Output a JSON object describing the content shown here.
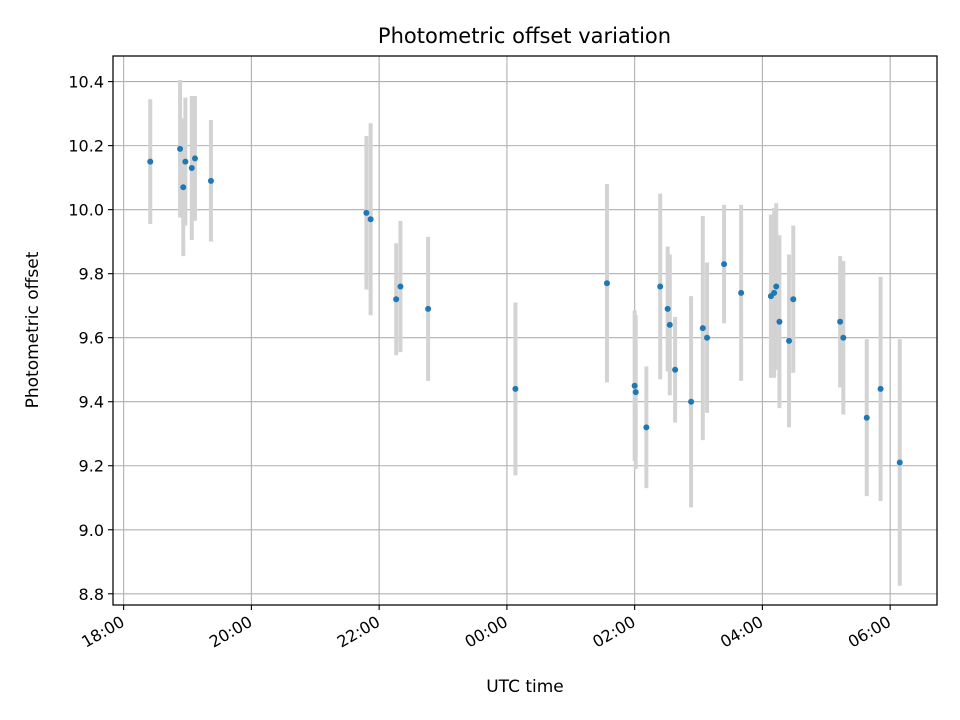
{
  "chart_data": {
    "type": "scatter",
    "title": "Photometric offset variation",
    "xlabel": "UTC time",
    "ylabel": "Photometric offset",
    "x_unit": "UTC clock time (consecutive night)",
    "x_ticks": [
      "18:00",
      "20:00",
      "22:00",
      "00:00",
      "02:00",
      "04:00",
      "06:00"
    ],
    "xlim": [
      "17:50",
      "06:44"
    ],
    "ylim": [
      8.765,
      10.48
    ],
    "y_ticks": [
      "8.8",
      "9.0",
      "9.2",
      "9.4",
      "9.6",
      "9.8",
      "10.0",
      "10.2",
      "10.4"
    ],
    "grid": true,
    "colors": {
      "point": "#1f77b4",
      "errorbar": "#d3d3d3",
      "grid": "#b0b0b0"
    },
    "points": [
      {
        "t": "18:25",
        "y": 10.15,
        "err": 0.195
      },
      {
        "t": "18:53",
        "y": 10.19,
        "err": 0.215
      },
      {
        "t": "18:56",
        "y": 10.07,
        "err": 0.215
      },
      {
        "t": "18:58",
        "y": 10.15,
        "err": 0.2
      },
      {
        "t": "19:04",
        "y": 10.13,
        "err": 0.225
      },
      {
        "t": "19:07",
        "y": 10.16,
        "err": 0.195
      },
      {
        "t": "19:22",
        "y": 10.09,
        "err": 0.19
      },
      {
        "t": "21:48",
        "y": 9.99,
        "err": 0.24
      },
      {
        "t": "21:52",
        "y": 9.97,
        "err": 0.3
      },
      {
        "t": "22:16",
        "y": 9.72,
        "err": 0.175
      },
      {
        "t": "22:20",
        "y": 9.76,
        "err": 0.205
      },
      {
        "t": "22:46",
        "y": 9.69,
        "err": 0.225
      },
      {
        "t": "00:08",
        "y": 9.44,
        "err": 0.27
      },
      {
        "t": "01:34",
        "y": 9.77,
        "err": 0.31
      },
      {
        "t": "02:00",
        "y": 9.45,
        "err": 0.235
      },
      {
        "t": "02:01",
        "y": 9.43,
        "err": 0.24
      },
      {
        "t": "02:11",
        "y": 9.32,
        "err": 0.19
      },
      {
        "t": "02:24",
        "y": 9.76,
        "err": 0.29
      },
      {
        "t": "02:31",
        "y": 9.69,
        "err": 0.195
      },
      {
        "t": "02:33",
        "y": 9.64,
        "err": 0.22
      },
      {
        "t": "02:38",
        "y": 9.5,
        "err": 0.165
      },
      {
        "t": "02:53",
        "y": 9.4,
        "err": 0.33
      },
      {
        "t": "03:04",
        "y": 9.63,
        "err": 0.35
      },
      {
        "t": "03:08",
        "y": 9.6,
        "err": 0.235
      },
      {
        "t": "03:24",
        "y": 9.83,
        "err": 0.185
      },
      {
        "t": "03:40",
        "y": 9.74,
        "err": 0.275
      },
      {
        "t": "04:08",
        "y": 9.73,
        "err": 0.255
      },
      {
        "t": "04:11",
        "y": 9.74,
        "err": 0.265
      },
      {
        "t": "04:13",
        "y": 9.76,
        "err": 0.26
      },
      {
        "t": "04:16",
        "y": 9.65,
        "err": 0.27
      },
      {
        "t": "04:25",
        "y": 9.59,
        "err": 0.27
      },
      {
        "t": "04:29",
        "y": 9.72,
        "err": 0.23
      },
      {
        "t": "05:13",
        "y": 9.65,
        "err": 0.205
      },
      {
        "t": "05:16",
        "y": 9.6,
        "err": 0.24
      },
      {
        "t": "05:38",
        "y": 9.35,
        "err": 0.245
      },
      {
        "t": "05:51",
        "y": 9.44,
        "err": 0.35
      },
      {
        "t": "06:09",
        "y": 9.21,
        "err": 0.385
      }
    ]
  }
}
